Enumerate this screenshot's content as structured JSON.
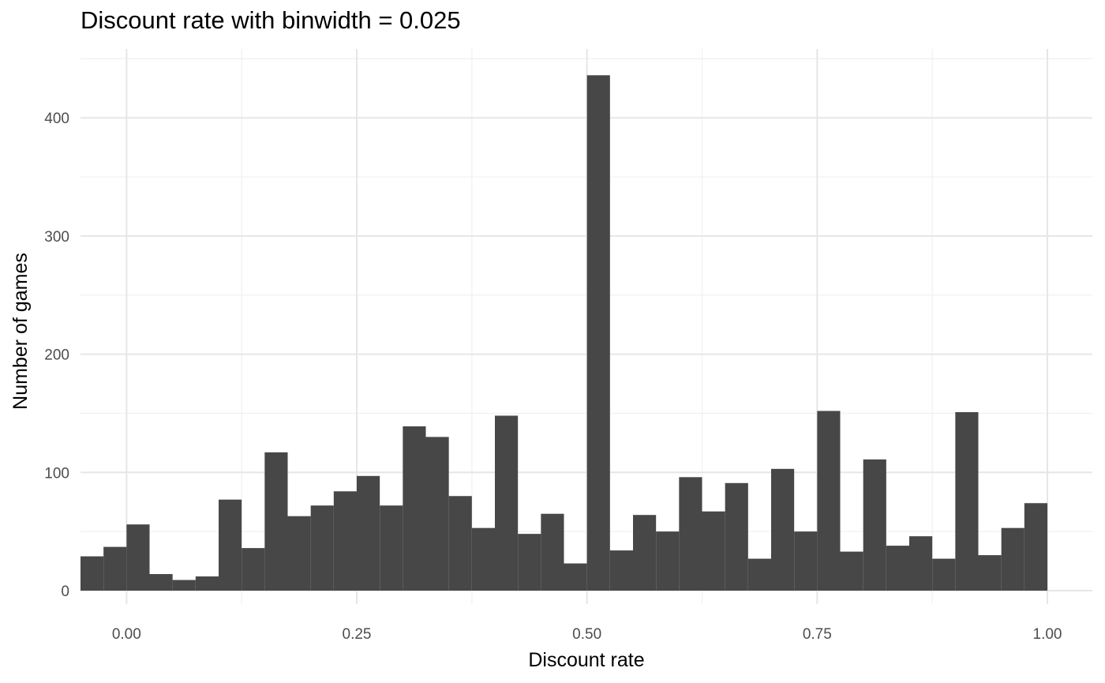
{
  "chart_data": {
    "type": "bar",
    "title": "Discount rate with binwidth = 0.025",
    "xlabel": "Discount rate",
    "ylabel": "Number of games",
    "binwidth": 0.025,
    "xlim": [
      -0.05,
      1.05
    ],
    "ylim": [
      0,
      450
    ],
    "x_ticks": [
      0.0,
      0.25,
      0.5,
      0.75,
      1.0
    ],
    "x_tick_labels": [
      "0.00",
      "0.25",
      "0.50",
      "0.75",
      "1.00"
    ],
    "y_ticks": [
      0,
      100,
      200,
      300,
      400
    ],
    "y_tick_labels": [
      "0",
      "100",
      "200",
      "300",
      "400"
    ],
    "grid": true,
    "bar_color": "#474747",
    "bins": [
      {
        "x_start": -0.05,
        "x_end": -0.025,
        "value": 29
      },
      {
        "x_start": -0.025,
        "x_end": 0.0,
        "value": 37
      },
      {
        "x_start": 0.0,
        "x_end": 0.025,
        "value": 56
      },
      {
        "x_start": 0.025,
        "x_end": 0.05,
        "value": 14
      },
      {
        "x_start": 0.05,
        "x_end": 0.075,
        "value": 9
      },
      {
        "x_start": 0.075,
        "x_end": 0.1,
        "value": 12
      },
      {
        "x_start": 0.1,
        "x_end": 0.125,
        "value": 77
      },
      {
        "x_start": 0.125,
        "x_end": 0.15,
        "value": 36
      },
      {
        "x_start": 0.15,
        "x_end": 0.175,
        "value": 117
      },
      {
        "x_start": 0.175,
        "x_end": 0.2,
        "value": 63
      },
      {
        "x_start": 0.2,
        "x_end": 0.225,
        "value": 72
      },
      {
        "x_start": 0.225,
        "x_end": 0.25,
        "value": 84
      },
      {
        "x_start": 0.25,
        "x_end": 0.275,
        "value": 97
      },
      {
        "x_start": 0.275,
        "x_end": 0.3,
        "value": 72
      },
      {
        "x_start": 0.3,
        "x_end": 0.325,
        "value": 139
      },
      {
        "x_start": 0.325,
        "x_end": 0.35,
        "value": 130
      },
      {
        "x_start": 0.35,
        "x_end": 0.375,
        "value": 80
      },
      {
        "x_start": 0.375,
        "x_end": 0.4,
        "value": 53
      },
      {
        "x_start": 0.4,
        "x_end": 0.425,
        "value": 148
      },
      {
        "x_start": 0.425,
        "x_end": 0.45,
        "value": 48
      },
      {
        "x_start": 0.45,
        "x_end": 0.475,
        "value": 65
      },
      {
        "x_start": 0.475,
        "x_end": 0.5,
        "value": 23
      },
      {
        "x_start": 0.5,
        "x_end": 0.525,
        "value": 436
      },
      {
        "x_start": 0.525,
        "x_end": 0.55,
        "value": 34
      },
      {
        "x_start": 0.55,
        "x_end": 0.575,
        "value": 64
      },
      {
        "x_start": 0.575,
        "x_end": 0.6,
        "value": 50
      },
      {
        "x_start": 0.6,
        "x_end": 0.625,
        "value": 96
      },
      {
        "x_start": 0.625,
        "x_end": 0.65,
        "value": 67
      },
      {
        "x_start": 0.65,
        "x_end": 0.675,
        "value": 91
      },
      {
        "x_start": 0.675,
        "x_end": 0.7,
        "value": 27
      },
      {
        "x_start": 0.7,
        "x_end": 0.725,
        "value": 103
      },
      {
        "x_start": 0.725,
        "x_end": 0.75,
        "value": 50
      },
      {
        "x_start": 0.75,
        "x_end": 0.775,
        "value": 152
      },
      {
        "x_start": 0.775,
        "x_end": 0.8,
        "value": 33
      },
      {
        "x_start": 0.8,
        "x_end": 0.825,
        "value": 111
      },
      {
        "x_start": 0.825,
        "x_end": 0.85,
        "value": 38
      },
      {
        "x_start": 0.85,
        "x_end": 0.875,
        "value": 46
      },
      {
        "x_start": 0.875,
        "x_end": 0.9,
        "value": 27
      },
      {
        "x_start": 0.9,
        "x_end": 0.925,
        "value": 151
      },
      {
        "x_start": 0.925,
        "x_end": 0.95,
        "value": 30
      },
      {
        "x_start": 0.95,
        "x_end": 0.975,
        "value": 53
      },
      {
        "x_start": 0.975,
        "x_end": 1.0,
        "value": 74
      }
    ]
  }
}
